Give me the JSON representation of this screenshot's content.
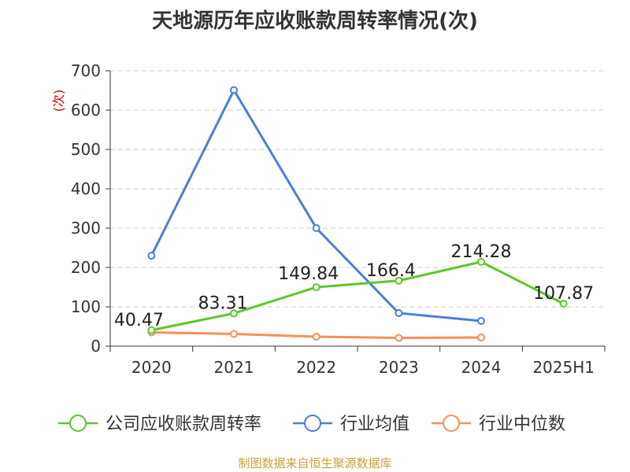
{
  "title": "天地源历年应收账款周转率情况(次)",
  "source": "制图数据来自恒生聚源数据库",
  "chart_data": {
    "type": "line",
    "title": "天地源历年应收账款周转率情况(次)",
    "ylabel": "(次)",
    "xlabel": "",
    "ylim": [
      0,
      700
    ],
    "yticks": [
      0,
      100,
      200,
      300,
      400,
      500,
      600,
      700
    ],
    "categories": [
      "2020",
      "2021",
      "2022",
      "2023",
      "2024",
      "2025H1"
    ],
    "grid": true,
    "legend_position": "bottom",
    "series": [
      {
        "name": "公司应收账款周转率",
        "color": "#5cc82a",
        "values": [
          40.47,
          83.31,
          149.84,
          166.4,
          214.28,
          107.87
        ],
        "labels": [
          "40.47",
          "83.31",
          "149.84",
          "166.4",
          "214.28",
          "107.87"
        ]
      },
      {
        "name": "行业均值",
        "color": "#4a7fd9",
        "values": [
          230,
          651,
          300,
          84,
          64,
          null
        ]
      },
      {
        "name": "行业中位数",
        "color": "#f59157",
        "values": [
          35,
          31,
          24,
          21,
          22,
          null
        ]
      }
    ]
  }
}
